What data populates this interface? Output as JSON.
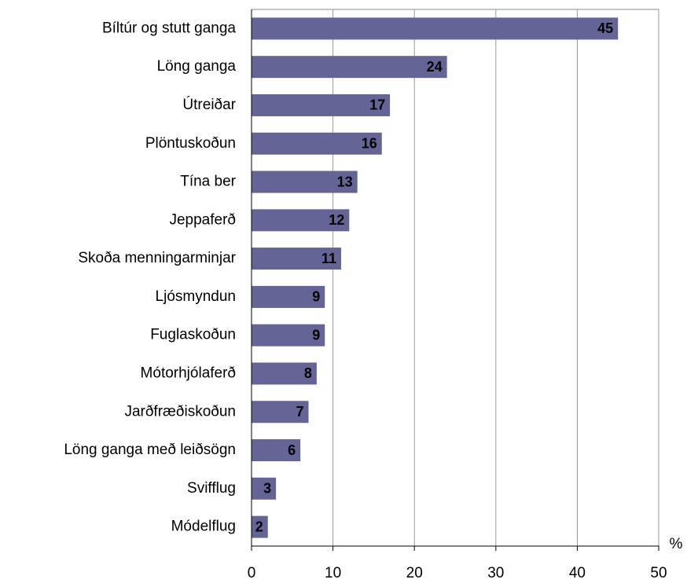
{
  "chart_data": {
    "type": "bar",
    "orientation": "horizontal",
    "categories": [
      "Bíltúr og stutt ganga",
      "Löng ganga",
      "Útreiðar",
      "Plöntuskoðun",
      "Tína ber",
      "Jeppaferð",
      "Skoða menningarminjar",
      "Ljósmyndun",
      "Fuglaskoðun",
      "Mótorhjólaferð",
      "Jarðfræðiskoðun",
      "Löng ganga með leiðsögn",
      "Svifflug",
      "Módelflug"
    ],
    "values": [
      45,
      24,
      17,
      16,
      13,
      12,
      11,
      9,
      9,
      8,
      7,
      6,
      3,
      2
    ],
    "color": "#646496",
    "xlim": [
      0,
      50
    ],
    "xticks": [
      0,
      10,
      20,
      30,
      40,
      50
    ],
    "x_label": "%",
    "grid": true
  }
}
